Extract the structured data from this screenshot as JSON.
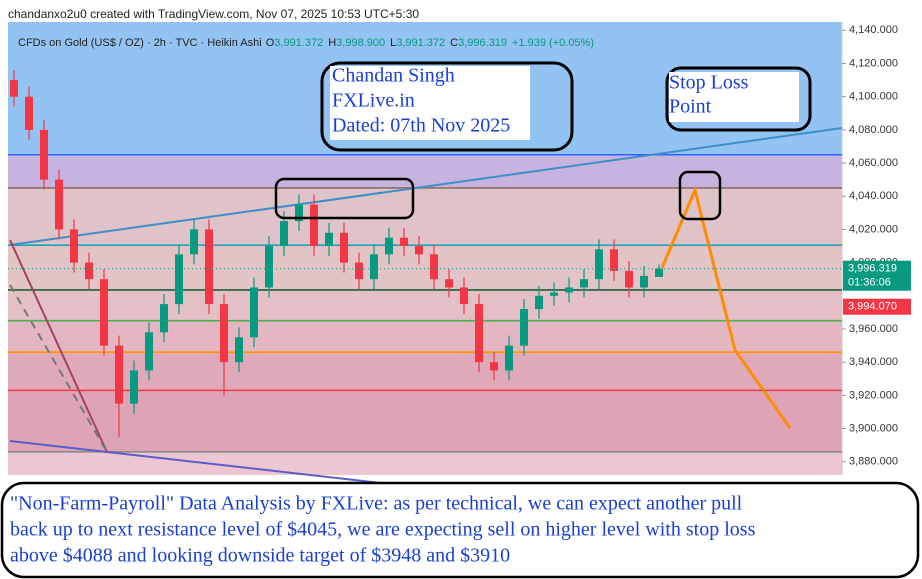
{
  "chart_data": {
    "type": "candlestick",
    "attribution": "chandanxo2u0 created with TradingView.com, Nov 07, 2025 10:53 UTC+5:30",
    "symbol_info": "CFDs on Gold (US$ / OZ) · 2h · TVC · Heikin Ashi",
    "ohlc_legend": [
      {
        "key": "O",
        "value": "3,991.372"
      },
      {
        "key": "H",
        "value": "3,998.900"
      },
      {
        "key": "L",
        "value": "3,991.372"
      },
      {
        "key": "C",
        "value": "3,996.319"
      }
    ],
    "change": "+1.939 (+0.05%)",
    "up_color": "#089981",
    "down_color": "#f23645",
    "open": [
      4110,
      4100,
      4080,
      4050,
      4020,
      4000,
      3990,
      3950,
      3915,
      3935,
      3958,
      3975,
      4005,
      4020,
      3975,
      3940,
      3955,
      3985,
      4010,
      4025,
      4035,
      4010,
      4018,
      4000,
      3990,
      4005,
      4015,
      4010,
      4005,
      3990,
      3985,
      3975,
      3940,
      3935,
      3950,
      3972,
      3980,
      3982,
      3985,
      3990,
      4008,
      3995,
      3985,
      3991.372
    ],
    "high": [
      4116,
      4106,
      4086,
      4056,
      4026,
      4006,
      3996,
      3956,
      3941,
      3964,
      3981,
      4011,
      4026,
      4026,
      3981,
      3961,
      3991,
      4016,
      4031,
      4041,
      4041,
      4024,
      4024,
      4006,
      4011,
      4021,
      4021,
      4016,
      4011,
      3996,
      3991,
      3981,
      3946,
      3956,
      3978,
      3986,
      3988,
      3991,
      3996,
      4014,
      4014,
      4001,
      3998,
      3998.9
    ],
    "low": [
      4094,
      4074,
      4044,
      4014,
      3994,
      3984,
      3944,
      3895,
      3909,
      3929,
      3952,
      3969,
      3999,
      3969,
      3920,
      3934,
      3949,
      3979,
      4004,
      4019,
      4004,
      4004,
      3994,
      3984,
      3984,
      3999,
      4004,
      3999,
      3984,
      3979,
      3969,
      3934,
      3929,
      3929,
      3944,
      3966,
      3974,
      3976,
      3979,
      3984,
      3989,
      3979,
      3979,
      3991.372
    ],
    "close": [
      4100,
      4080,
      4050,
      4020,
      4000,
      3990,
      3950,
      3915,
      3935,
      3958,
      3975,
      4005,
      4020,
      3975,
      3940,
      3955,
      3985,
      4010,
      4025,
      4035,
      4010,
      4018,
      4000,
      3990,
      4005,
      4015,
      4010,
      4005,
      3990,
      3985,
      3975,
      3940,
      3935,
      3950,
      3972,
      3980,
      3982,
      3985,
      3990,
      4008,
      3995,
      3985,
      3992,
      3996.319
    ],
    "ylim": [
      3872,
      4145
    ],
    "yticks": [
      {
        "value": 4140,
        "label": "4,140.000"
      },
      {
        "value": 4120,
        "label": "4,120.000"
      },
      {
        "value": 4100,
        "label": "4,100.000"
      },
      {
        "value": 4080,
        "label": "4,080.000"
      },
      {
        "value": 4060,
        "label": "4,060.000"
      },
      {
        "value": 4040,
        "label": "4,040.000"
      },
      {
        "value": 4020,
        "label": "4,020.000"
      },
      {
        "value": 4000,
        "label": "4,000.000"
      },
      {
        "value": 3960,
        "label": "3,960.000"
      },
      {
        "value": 3940,
        "label": "3,940.000"
      },
      {
        "value": 3920,
        "label": "3,920.000"
      },
      {
        "value": 3900,
        "label": "3,900.000"
      },
      {
        "value": 3880,
        "label": "3,880.000"
      }
    ],
    "levels": [
      {
        "value": 4065,
        "color": "#2962ff"
      },
      {
        "value": 4045,
        "color": "#8d6e63"
      },
      {
        "value": 4010.5,
        "color": "#26a0b8"
      },
      {
        "value": 3983.5,
        "color": "#1b5e3a"
      },
      {
        "value": 3965,
        "color": "#4caf50"
      },
      {
        "value": 3946,
        "color": "#ff9800"
      },
      {
        "value": 3923,
        "color": "#f23645"
      },
      {
        "value": 3886,
        "color": "#8a8a8a"
      }
    ],
    "price_badges": [
      {
        "value": 3996.319,
        "label": "3,996.319",
        "timer": "01:36:06",
        "color": "#089981"
      },
      {
        "value": 3994.07,
        "label": "3,994.070",
        "color": "#f23645"
      }
    ],
    "annotations": {
      "author_box": [
        "Chandan Singh",
        "FXLive.in",
        "Dated: 07th Nov 2025"
      ],
      "stop_loss_box": [
        "Stop Loss",
        "Point"
      ],
      "analysis": [
        "\"Non-Farm-Payroll\" Data Analysis by FXLive: as per technical, we can expect another pull",
        "back up to next resistance level of $4045, we are expecting sell on higher level with stop loss",
        "above $4088 and looking downside target of $3948 and $3910"
      ]
    }
  }
}
